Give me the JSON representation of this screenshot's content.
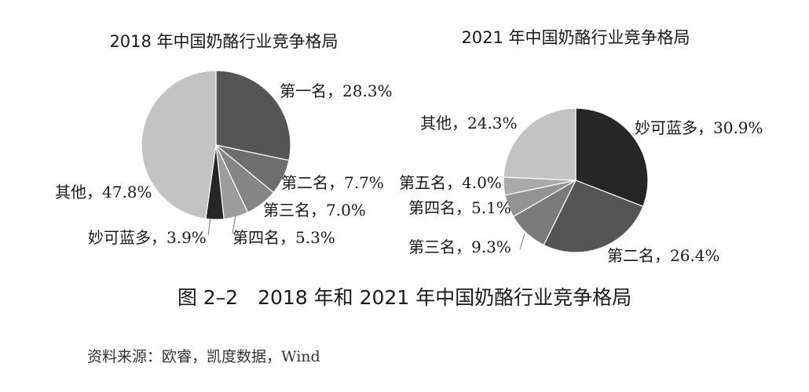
{
  "chart_data": [
    {
      "type": "pie",
      "title": "2018 年中国奶酪行业竞争格局",
      "slices": [
        {
          "name": "第一名",
          "value": 28.3,
          "label": "第一名，28.3%",
          "color": "#555555"
        },
        {
          "name": "第二名",
          "value": 7.7,
          "label": "第二名，7.7%",
          "color": "#6e6e6e"
        },
        {
          "name": "第三名",
          "value": 7.0,
          "label": "第三名，7.0%",
          "color": "#858585"
        },
        {
          "name": "第四名",
          "value": 5.3,
          "label": "第四名，5.3%",
          "color": "#9c9c9c"
        },
        {
          "name": "妙可蓝多",
          "value": 3.9,
          "label": "妙可蓝多，3.9%",
          "color": "#262626"
        },
        {
          "name": "其他",
          "value": 47.8,
          "label": "其他，47.8%",
          "color": "#c3c3c3"
        }
      ]
    },
    {
      "type": "pie",
      "title": "2021 年中国奶酪行业竞争格局",
      "slices": [
        {
          "name": "妙可蓝多",
          "value": 30.9,
          "label": "妙可蓝多，30.9%",
          "color": "#262626"
        },
        {
          "name": "第二名",
          "value": 26.4,
          "label": "第二名，26.4%",
          "color": "#555555"
        },
        {
          "name": "第三名",
          "value": 9.3,
          "label": "第三名，9.3%",
          "color": "#7a7a7a"
        },
        {
          "name": "第四名",
          "value": 5.1,
          "label": "第四名，5.1%",
          "color": "#939393"
        },
        {
          "name": "第五名",
          "value": 4.0,
          "label": "第五名，4.0%",
          "color": "#aaaaaa"
        },
        {
          "name": "其他",
          "value": 24.3,
          "label": "其他，24.3%",
          "color": "#c3c3c3"
        }
      ]
    }
  ],
  "figure": {
    "caption": "图 2–2　2018 年和 2021 年中国奶酪行业竞争格局",
    "source": "资料来源：欧睿，凯度数据，Wind"
  }
}
